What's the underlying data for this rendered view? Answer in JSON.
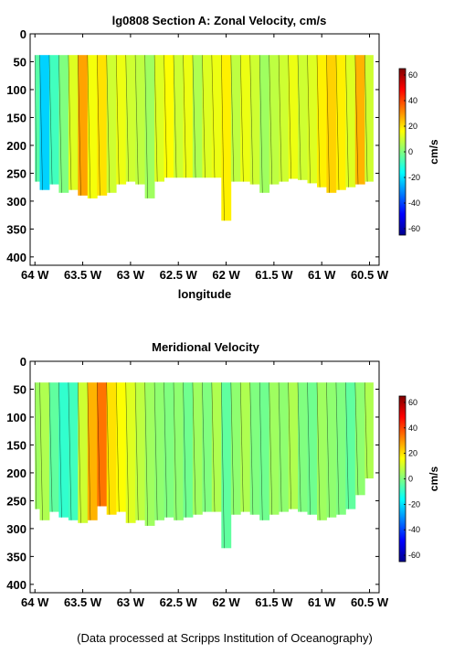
{
  "chart_data": [
    {
      "type": "heatmap",
      "title": "lg0808 Section A: Zonal Velocity, cm/s",
      "xlabel": "longitude",
      "ylabel": "",
      "x_ticks": [
        "64 W",
        "63.5 W",
        "63 W",
        "62.5 W",
        "62 W",
        "61.5 W",
        "61 W",
        "60.5 W"
      ],
      "x_tick_values": [
        -64,
        -63.5,
        -63,
        -62.5,
        -62,
        -61.5,
        -61,
        -60.5
      ],
      "xlim": [
        -64.05,
        -60.4
      ],
      "y_ticks": [
        "0",
        "50",
        "100",
        "150",
        "200",
        "250",
        "300",
        "350",
        "400"
      ],
      "y_tick_values": [
        0,
        50,
        100,
        150,
        200,
        250,
        300,
        350,
        400
      ],
      "ylim": [
        0,
        415
      ],
      "y_reversed": true,
      "colorbar": {
        "label": "cm/s",
        "ticks": [
          "60",
          "40",
          "20",
          "0",
          "-20",
          "-40",
          "-60"
        ],
        "tick_values": [
          60,
          40,
          20,
          0,
          -20,
          -40,
          -60
        ],
        "range": [
          -65,
          65
        ]
      },
      "data_top_depth": 38,
      "columns": [
        {
          "lon": -64.0,
          "bottom": 265,
          "v": -5
        },
        {
          "lon": -63.9,
          "bottom": 280,
          "v": -22
        },
        {
          "lon": -63.8,
          "bottom": 270,
          "v": -8
        },
        {
          "lon": -63.7,
          "bottom": 285,
          "v": 0
        },
        {
          "lon": -63.6,
          "bottom": 280,
          "v": 12
        },
        {
          "lon": -63.5,
          "bottom": 290,
          "v": 28
        },
        {
          "lon": -63.4,
          "bottom": 295,
          "v": 15
        },
        {
          "lon": -63.3,
          "bottom": 290,
          "v": 20
        },
        {
          "lon": -63.2,
          "bottom": 285,
          "v": 10
        },
        {
          "lon": -63.1,
          "bottom": 270,
          "v": 14
        },
        {
          "lon": -63.0,
          "bottom": 265,
          "v": 10
        },
        {
          "lon": -62.9,
          "bottom": 270,
          "v": 8
        },
        {
          "lon": -62.8,
          "bottom": 295,
          "v": 4
        },
        {
          "lon": -62.7,
          "bottom": 265,
          "v": 12
        },
        {
          "lon": -62.6,
          "bottom": 258,
          "v": 16
        },
        {
          "lon": -62.5,
          "bottom": 258,
          "v": 10
        },
        {
          "lon": -62.4,
          "bottom": 258,
          "v": 14
        },
        {
          "lon": -62.3,
          "bottom": 258,
          "v": 6
        },
        {
          "lon": -62.2,
          "bottom": 258,
          "v": 12
        },
        {
          "lon": -62.1,
          "bottom": 258,
          "v": 14
        },
        {
          "lon": -62.0,
          "bottom": 335,
          "v": 18
        },
        {
          "lon": -61.9,
          "bottom": 265,
          "v": 8
        },
        {
          "lon": -61.8,
          "bottom": 265,
          "v": 14
        },
        {
          "lon": -61.7,
          "bottom": 270,
          "v": 10
        },
        {
          "lon": -61.6,
          "bottom": 285,
          "v": 4
        },
        {
          "lon": -61.5,
          "bottom": 270,
          "v": 8
        },
        {
          "lon": -61.4,
          "bottom": 265,
          "v": 10
        },
        {
          "lon": -61.3,
          "bottom": 260,
          "v": 14
        },
        {
          "lon": -61.2,
          "bottom": 262,
          "v": 10
        },
        {
          "lon": -61.1,
          "bottom": 268,
          "v": 12
        },
        {
          "lon": -61.0,
          "bottom": 275,
          "v": 18
        },
        {
          "lon": -60.9,
          "bottom": 285,
          "v": 22
        },
        {
          "lon": -60.8,
          "bottom": 280,
          "v": 18
        },
        {
          "lon": -60.7,
          "bottom": 275,
          "v": 12
        },
        {
          "lon": -60.6,
          "bottom": 270,
          "v": 26
        },
        {
          "lon": -60.5,
          "bottom": 265,
          "v": 10
        }
      ]
    },
    {
      "type": "heatmap",
      "title": "Meridional Velocity",
      "xlabel": "longitude",
      "ylabel": "",
      "x_ticks": [
        "64 W",
        "63.5 W",
        "63 W",
        "62.5 W",
        "62 W",
        "61.5 W",
        "61 W",
        "60.5 W"
      ],
      "x_tick_values": [
        -64,
        -63.5,
        -63,
        -62.5,
        -62,
        -61.5,
        -61,
        -60.5
      ],
      "xlim": [
        -64.05,
        -60.4
      ],
      "y_ticks": [
        "0",
        "50",
        "100",
        "150",
        "200",
        "250",
        "300",
        "350",
        "400"
      ],
      "y_tick_values": [
        0,
        50,
        100,
        150,
        200,
        250,
        300,
        350,
        400
      ],
      "ylim": [
        0,
        415
      ],
      "y_reversed": true,
      "colorbar": {
        "label": "cm/s",
        "ticks": [
          "60",
          "40",
          "20",
          "0",
          "-20",
          "-40",
          "-60"
        ],
        "tick_values": [
          60,
          40,
          20,
          0,
          -20,
          -40,
          -60
        ],
        "range": [
          -65,
          65
        ]
      },
      "data_top_depth": 38,
      "columns": [
        {
          "lon": -64.0,
          "bottom": 265,
          "v": 4
        },
        {
          "lon": -63.9,
          "bottom": 285,
          "v": 6
        },
        {
          "lon": -63.8,
          "bottom": 270,
          "v": -4
        },
        {
          "lon": -63.7,
          "bottom": 280,
          "v": -10
        },
        {
          "lon": -63.6,
          "bottom": 285,
          "v": -8
        },
        {
          "lon": -63.5,
          "bottom": 290,
          "v": 10
        },
        {
          "lon": -63.4,
          "bottom": 285,
          "v": 26
        },
        {
          "lon": -63.3,
          "bottom": 260,
          "v": 34
        },
        {
          "lon": -63.2,
          "bottom": 275,
          "v": 20
        },
        {
          "lon": -63.1,
          "bottom": 270,
          "v": 16
        },
        {
          "lon": -63.0,
          "bottom": 290,
          "v": 12
        },
        {
          "lon": -62.9,
          "bottom": 285,
          "v": 8
        },
        {
          "lon": -62.8,
          "bottom": 295,
          "v": 4
        },
        {
          "lon": -62.7,
          "bottom": 285,
          "v": 2
        },
        {
          "lon": -62.6,
          "bottom": 280,
          "v": 0
        },
        {
          "lon": -62.5,
          "bottom": 285,
          "v": 2
        },
        {
          "lon": -62.4,
          "bottom": 280,
          "v": -2
        },
        {
          "lon": -62.3,
          "bottom": 275,
          "v": 4
        },
        {
          "lon": -62.2,
          "bottom": 270,
          "v": 0
        },
        {
          "lon": -62.1,
          "bottom": 270,
          "v": 6
        },
        {
          "lon": -62.0,
          "bottom": 335,
          "v": -4
        },
        {
          "lon": -61.9,
          "bottom": 275,
          "v": 2
        },
        {
          "lon": -61.8,
          "bottom": 270,
          "v": 6
        },
        {
          "lon": -61.7,
          "bottom": 275,
          "v": 0
        },
        {
          "lon": -61.6,
          "bottom": 285,
          "v": -2
        },
        {
          "lon": -61.5,
          "bottom": 275,
          "v": 4
        },
        {
          "lon": -61.4,
          "bottom": 270,
          "v": 2
        },
        {
          "lon": -61.3,
          "bottom": 265,
          "v": 6
        },
        {
          "lon": -61.2,
          "bottom": 270,
          "v": 0
        },
        {
          "lon": -61.1,
          "bottom": 275,
          "v": -2
        },
        {
          "lon": -61.0,
          "bottom": 285,
          "v": 4
        },
        {
          "lon": -60.9,
          "bottom": 280,
          "v": 2
        },
        {
          "lon": -60.8,
          "bottom": 275,
          "v": 0
        },
        {
          "lon": -60.7,
          "bottom": 265,
          "v": -4
        },
        {
          "lon": -60.6,
          "bottom": 240,
          "v": 2
        },
        {
          "lon": -60.5,
          "bottom": 210,
          "v": 6
        }
      ]
    }
  ],
  "footer": {
    "credit": "(Data processed at Scripps Institution of Oceanography)"
  }
}
